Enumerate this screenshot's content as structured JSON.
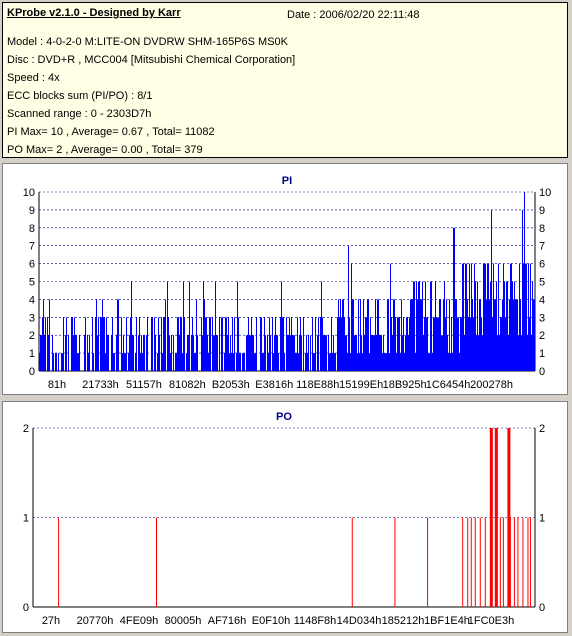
{
  "info": {
    "app_title": "KProbe v2.1.0 - Designed by Karr",
    "date": "Date : 2006/02/20 22:11:48",
    "model": "Model : 4-0-2-0 M:LITE-ON DVDRW SHM-165P6S MS0K",
    "disc": "Disc : DVD+R , MCC004 [Mitsubishi Chemical Corporation]",
    "speed": "Speed : 4x",
    "ecc": "ECC blocks sum (PI/PO) : 8/1",
    "range": "Scanned range : 0 - 2303D7h",
    "pi_stats": "PI Max= 10 , Average= 0.67 , Total= 11082",
    "po_stats": "PO Max= 2 , Average= 0.00 , Total= 379"
  },
  "colors": {
    "background": "#d4d0c8",
    "info_bg": "#ffffe6",
    "pi_bars": "#0000ff",
    "po_bars": "#ff0000",
    "grid": "#000080",
    "title": "#000080"
  },
  "chart_data": [
    {
      "type": "bar",
      "title": "PI",
      "ylim": [
        0,
        10
      ],
      "yticks": [
        0,
        1,
        2,
        3,
        4,
        5,
        6,
        7,
        8,
        9,
        10
      ],
      "xticks": [
        "81h",
        "21733h",
        "51157h",
        "81082h",
        "B2053h",
        "E3816h",
        "118E88h",
        "15199Eh",
        "18B925h",
        "1C6454h",
        "200278h"
      ],
      "grid": true,
      "segments": [
        {
          "x": [
            0.0,
            0.15
          ],
          "base": [
            0,
            2
          ],
          "spikes": 3,
          "max": 4
        },
        {
          "x": [
            0.15,
            0.4
          ],
          "base": [
            0,
            2
          ],
          "spikes": 3,
          "max": 5
        },
        {
          "x": [
            0.4,
            0.6
          ],
          "base": [
            0,
            2
          ],
          "spikes": 3,
          "max": 5
        },
        {
          "x": [
            0.6,
            0.75
          ],
          "base": [
            1,
            3
          ],
          "spikes": 4,
          "max": 7
        },
        {
          "x": [
            0.75,
            0.85
          ],
          "base": [
            1,
            4
          ],
          "spikes": 5,
          "max": 8
        },
        {
          "x": [
            0.85,
            1.0
          ],
          "base": [
            2,
            5
          ],
          "spikes": 6,
          "max": 10
        }
      ]
    },
    {
      "type": "bar",
      "title": "PO",
      "ylim": [
        0,
        2
      ],
      "yticks": [
        0,
        1,
        2
      ],
      "xticks": [
        "27h",
        "20770h",
        "4FE09h",
        "80005h",
        "AF716h",
        "E0F10h",
        "1148F8h",
        "14D034h",
        "185212h",
        "1BF1E4h",
        "1FC0E3h"
      ],
      "grid": true,
      "x": [
        0.05,
        0.245,
        0.635,
        0.72,
        0.785,
        0.855,
        0.865,
        0.872,
        0.88,
        0.89,
        0.9,
        0.91,
        0.92,
        0.93,
        0.936,
        0.945,
        0.95,
        0.958,
        0.965,
        0.975,
        0.985,
        0.99
      ],
      "values": [
        1,
        1,
        1,
        1,
        1,
        1,
        1,
        1,
        1,
        1,
        1,
        2,
        2,
        1,
        1,
        2,
        1,
        1,
        1,
        1,
        1,
        1
      ]
    }
  ]
}
